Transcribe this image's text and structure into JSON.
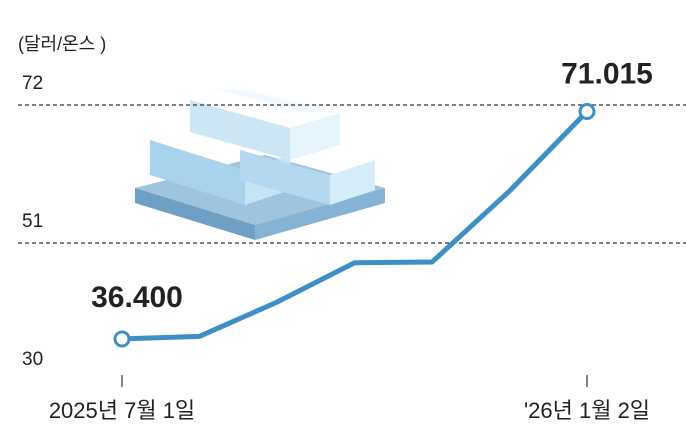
{
  "chart_data": {
    "type": "line",
    "unit_label": "(달러/온스 )",
    "categories": [
      "2025년 7월 1일",
      null,
      null,
      null,
      null,
      null,
      "'26년 1월 2일"
    ],
    "series": [
      {
        "name": "silver",
        "color": "#3d8fc6",
        "values": [
          36.4,
          36.8,
          42.0,
          48.0,
          48.1,
          58.9,
          71.015
        ],
        "value_labels": [
          "36.400",
          null,
          null,
          null,
          null,
          null,
          "71.015"
        ]
      }
    ],
    "ylim": [
      30,
      72
    ],
    "yticks": [
      30,
      51,
      72
    ],
    "grid": true
  }
}
